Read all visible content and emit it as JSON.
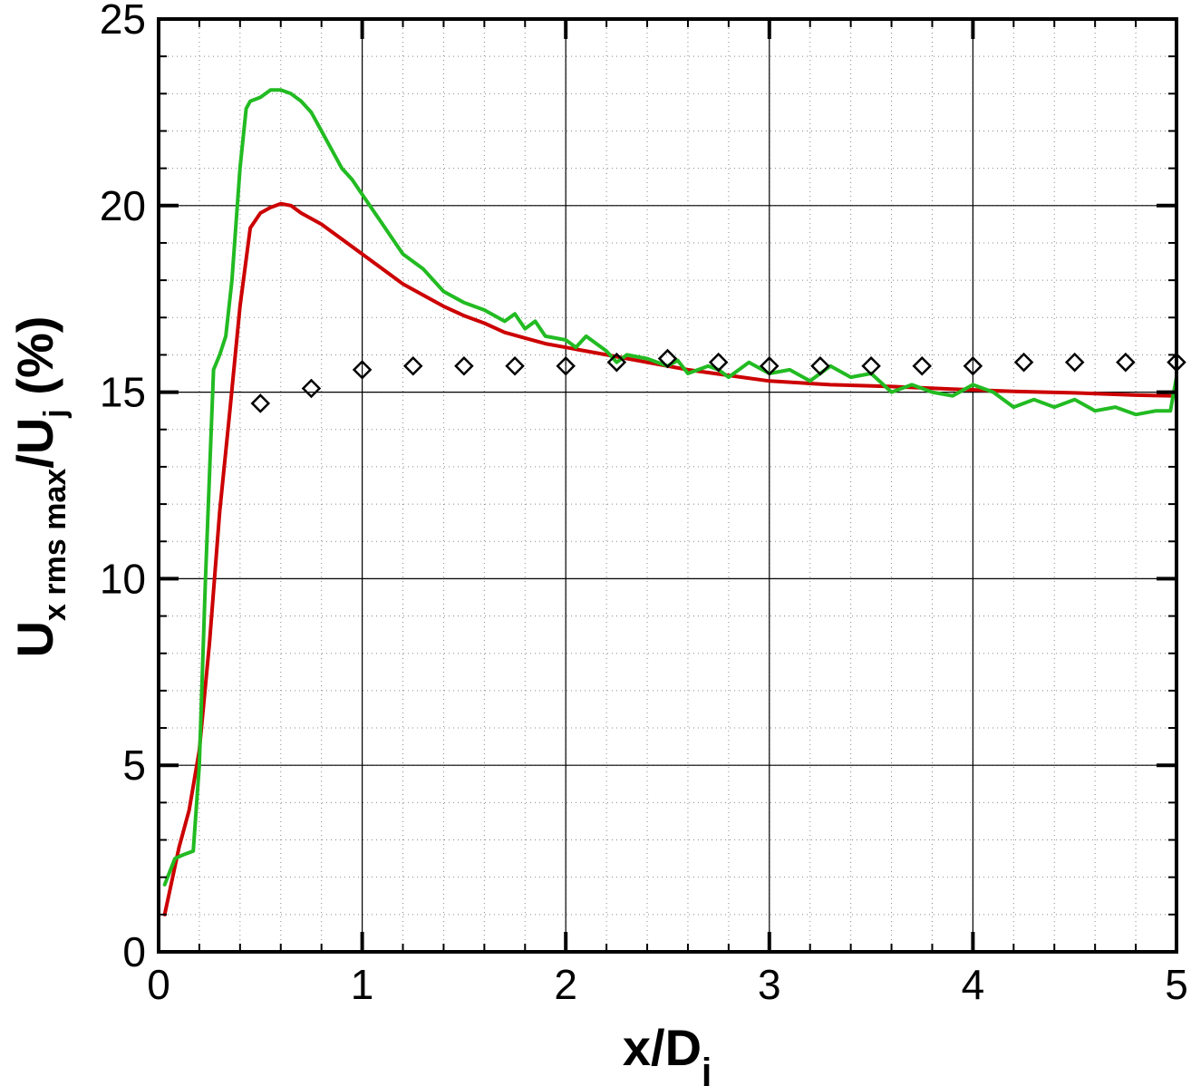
{
  "chart_data": {
    "type": "line",
    "xlabel": {
      "main": "x/D",
      "sub": "j"
    },
    "ylabel": {
      "main": "U",
      "sub": "x rms max",
      "mid": "/U",
      "sub2": "j",
      "tail": " (%)"
    },
    "xlim": [
      0,
      5
    ],
    "ylim": [
      0,
      25
    ],
    "x_ticks": [
      0,
      1,
      2,
      3,
      4,
      5
    ],
    "y_ticks": [
      0,
      5,
      10,
      15,
      20,
      25
    ],
    "x_minor_step": 0.2,
    "y_minor_step": 1,
    "grid": true,
    "colors": {
      "red": "#cc0000",
      "green": "#22bb22",
      "markers": "#000000"
    },
    "series": [
      {
        "style": "line",
        "color": "#cc0000",
        "x": [
          0.03,
          0.1,
          0.15,
          0.2,
          0.25,
          0.3,
          0.35,
          0.4,
          0.45,
          0.5,
          0.55,
          0.6,
          0.65,
          0.7,
          0.8,
          0.9,
          1.0,
          1.1,
          1.2,
          1.3,
          1.4,
          1.5,
          1.6,
          1.7,
          1.8,
          1.9,
          2.0,
          2.2,
          2.4,
          2.6,
          2.8,
          3.0,
          3.3,
          3.6,
          3.9,
          4.2,
          4.5,
          4.8,
          5.0
        ],
        "y": [
          1.0,
          2.8,
          3.8,
          5.4,
          8.3,
          11.8,
          14.5,
          17.3,
          19.4,
          19.8,
          19.95,
          20.05,
          20.0,
          19.8,
          19.5,
          19.1,
          18.7,
          18.3,
          17.9,
          17.6,
          17.3,
          17.05,
          16.85,
          16.6,
          16.45,
          16.3,
          16.2,
          16.0,
          15.8,
          15.6,
          15.45,
          15.3,
          15.2,
          15.15,
          15.08,
          15.02,
          14.98,
          14.92,
          14.9
        ]
      },
      {
        "style": "line",
        "color": "#22bb22",
        "x": [
          0.03,
          0.08,
          0.12,
          0.17,
          0.2,
          0.23,
          0.27,
          0.3,
          0.33,
          0.36,
          0.4,
          0.43,
          0.45,
          0.5,
          0.55,
          0.6,
          0.65,
          0.7,
          0.75,
          0.8,
          0.85,
          0.9,
          0.95,
          1.0,
          1.1,
          1.2,
          1.3,
          1.4,
          1.5,
          1.6,
          1.7,
          1.75,
          1.8,
          1.85,
          1.9,
          2.0,
          2.05,
          2.1,
          2.2,
          2.25,
          2.3,
          2.4,
          2.5,
          2.55,
          2.6,
          2.7,
          2.75,
          2.8,
          2.9,
          3.0,
          3.1,
          3.2,
          3.3,
          3.4,
          3.5,
          3.6,
          3.7,
          3.8,
          3.9,
          4.0,
          4.1,
          4.2,
          4.3,
          4.4,
          4.5,
          4.6,
          4.7,
          4.8,
          4.9,
          4.97,
          5.0
        ],
        "y": [
          1.8,
          2.5,
          2.6,
          2.7,
          5.0,
          10.0,
          15.6,
          16.0,
          16.5,
          18.0,
          21.0,
          22.6,
          22.8,
          22.9,
          23.1,
          23.1,
          23.0,
          22.8,
          22.5,
          22.0,
          21.5,
          21.0,
          20.7,
          20.3,
          19.5,
          18.7,
          18.3,
          17.7,
          17.4,
          17.2,
          16.9,
          17.1,
          16.7,
          16.9,
          16.5,
          16.4,
          16.2,
          16.5,
          16.1,
          15.8,
          16.0,
          15.9,
          15.7,
          15.85,
          15.5,
          15.7,
          15.6,
          15.4,
          15.8,
          15.5,
          15.6,
          15.3,
          15.7,
          15.4,
          15.5,
          15.0,
          15.2,
          15.0,
          14.9,
          15.2,
          15.0,
          14.6,
          14.8,
          14.6,
          14.8,
          14.5,
          14.6,
          14.4,
          14.5,
          14.5,
          15.4
        ]
      },
      {
        "style": "markers",
        "marker": "diamond",
        "color": "#000000",
        "x": [
          0.5,
          0.75,
          1.0,
          1.25,
          1.5,
          1.75,
          2.0,
          2.25,
          2.5,
          2.75,
          3.0,
          3.25,
          3.5,
          3.75,
          4.0,
          4.25,
          4.5,
          4.75,
          5.0
        ],
        "y": [
          14.7,
          15.1,
          15.6,
          15.7,
          15.7,
          15.7,
          15.7,
          15.8,
          15.9,
          15.8,
          15.7,
          15.7,
          15.7,
          15.7,
          15.7,
          15.8,
          15.8,
          15.8,
          15.8
        ]
      }
    ]
  }
}
